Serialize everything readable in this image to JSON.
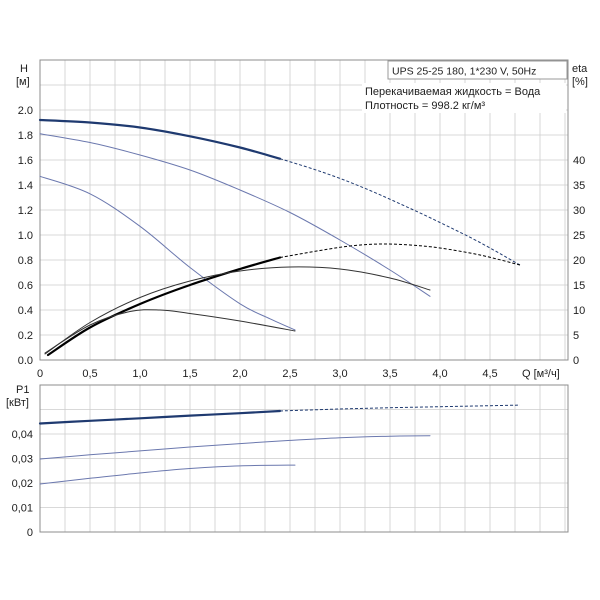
{
  "chart_data": [
    {
      "type": "line",
      "xlabel": "Q [м³/ч]",
      "ylabel": "H",
      "yunit": "[м]",
      "y2label": "eta",
      "y2unit": "[%]",
      "xlim": [
        0,
        5.28
      ],
      "ylim": [
        0,
        2.4
      ],
      "y2lim": [
        0,
        60
      ],
      "grid": true,
      "x_ticks": [
        {
          "value": 0,
          "label": "0"
        },
        {
          "value": 0.5,
          "label": "0,5"
        },
        {
          "value": 1.0,
          "label": "1,0"
        },
        {
          "value": 1.5,
          "label": "1,5"
        },
        {
          "value": 2.0,
          "label": "2,0"
        },
        {
          "value": 2.5,
          "label": "2,5"
        },
        {
          "value": 3.0,
          "label": "3,0"
        },
        {
          "value": 3.5,
          "label": "3,5"
        },
        {
          "value": 4.0,
          "label": "4,0"
        },
        {
          "value": 4.5,
          "label": "4,5"
        }
      ],
      "y_ticks": [
        {
          "value": 0.0,
          "label": "0.0"
        },
        {
          "value": 0.2,
          "label": "0.2"
        },
        {
          "value": 0.4,
          "label": "0.4"
        },
        {
          "value": 0.6,
          "label": "0.6"
        },
        {
          "value": 0.8,
          "label": "0.8"
        },
        {
          "value": 1.0,
          "label": "1.0"
        },
        {
          "value": 1.2,
          "label": "1.2"
        },
        {
          "value": 1.4,
          "label": "1.4"
        },
        {
          "value": 1.6,
          "label": "1.6"
        },
        {
          "value": 1.8,
          "label": "1.8"
        },
        {
          "value": 2.0,
          "label": "2.0"
        }
      ],
      "y2_ticks": [
        {
          "value": 0,
          "label": "0"
        },
        {
          "value": 5,
          "label": "5"
        },
        {
          "value": 10,
          "label": "10"
        },
        {
          "value": 15,
          "label": "15"
        },
        {
          "value": 20,
          "label": "20"
        },
        {
          "value": 25,
          "label": "25"
        },
        {
          "value": 30,
          "label": "30"
        },
        {
          "value": 35,
          "label": "35"
        },
        {
          "value": 40,
          "label": "40"
        }
      ],
      "annotations": {
        "model": "UPS 25-25 180, 1*230 V, 50Hz",
        "liquid": "Перекачиваемая жидкость = Вода",
        "density": "Плотность = 998.2 кг/м³"
      },
      "series": [
        {
          "color": "#1f3a70",
          "dashed_after": 2.4,
          "points": [
            [
              0,
              1.92
            ],
            [
              0.5,
              1.9
            ],
            [
              1.0,
              1.86
            ],
            [
              1.5,
              1.79
            ],
            [
              2.0,
              1.7
            ],
            [
              2.4,
              1.61
            ],
            [
              2.8,
              1.51
            ],
            [
              3.2,
              1.39
            ],
            [
              3.6,
              1.25
            ],
            [
              4.0,
              1.1
            ],
            [
              4.4,
              0.94
            ],
            [
              4.8,
              0.76
            ]
          ]
        },
        {
          "color": "#6b78ae",
          "points": [
            [
              0,
              1.81
            ],
            [
              0.5,
              1.74
            ],
            [
              1.0,
              1.64
            ],
            [
              1.5,
              1.52
            ],
            [
              2.0,
              1.36
            ],
            [
              2.5,
              1.18
            ],
            [
              3.0,
              0.96
            ],
            [
              3.5,
              0.72
            ],
            [
              3.9,
              0.51
            ]
          ]
        },
        {
          "color": "#6b78ae",
          "points": [
            [
              0,
              1.47
            ],
            [
              0.5,
              1.33
            ],
            [
              1.0,
              1.07
            ],
            [
              1.5,
              0.74
            ],
            [
              2.0,
              0.45
            ],
            [
              2.3,
              0.33
            ],
            [
              2.55,
              0.24
            ]
          ]
        }
      ],
      "y2_series": [
        {
          "color": "#000000",
          "dashed_after": 2.4,
          "points": [
            [
              0.08,
              1.0
            ],
            [
              0.5,
              6.5
            ],
            [
              1.0,
              11.2
            ],
            [
              1.5,
              15.0
            ],
            [
              2.0,
              18.2
            ],
            [
              2.4,
              20.5
            ],
            [
              2.8,
              21.9
            ],
            [
              3.1,
              22.8
            ],
            [
              3.4,
              23.2
            ],
            [
              3.7,
              23.0
            ],
            [
              4.0,
              22.4
            ],
            [
              4.4,
              21.0
            ],
            [
              4.8,
              19.0
            ]
          ]
        },
        {
          "color": "#333333",
          "points": [
            [
              0.05,
              1.2
            ],
            [
              0.5,
              7.5
            ],
            [
              1.0,
              12.5
            ],
            [
              1.5,
              15.8
            ],
            [
              2.0,
              17.8
            ],
            [
              2.5,
              18.6
            ],
            [
              3.0,
              18.2
            ],
            [
              3.5,
              16.4
            ],
            [
              3.9,
              14.0
            ]
          ]
        },
        {
          "color": "#333333",
          "points": [
            [
              0.05,
              1.4
            ],
            [
              0.5,
              7.0
            ],
            [
              0.9,
              9.7
            ],
            [
              1.2,
              10.0
            ],
            [
              1.5,
              9.3
            ],
            [
              2.0,
              7.8
            ],
            [
              2.55,
              5.8
            ]
          ]
        }
      ]
    },
    {
      "type": "line",
      "ylabel": "P1",
      "yunit": "[кВт]",
      "xlim": [
        0,
        5.28
      ],
      "ylim": [
        0,
        0.06
      ],
      "grid": true,
      "y_ticks": [
        {
          "value": 0,
          "label": "0"
        },
        {
          "value": 0.01,
          "label": "0,01"
        },
        {
          "value": 0.02,
          "label": "0,02"
        },
        {
          "value": 0.03,
          "label": "0,03"
        },
        {
          "value": 0.04,
          "label": "0,04"
        }
      ],
      "series": [
        {
          "color": "#1f3a70",
          "dashed_after": 2.4,
          "points": [
            [
              0,
              0.0443
            ],
            [
              0.5,
              0.0454
            ],
            [
              1.0,
              0.0464
            ],
            [
              1.5,
              0.0475
            ],
            [
              2.0,
              0.0485
            ],
            [
              2.4,
              0.0494
            ],
            [
              3.0,
              0.0502
            ],
            [
              3.6,
              0.0508
            ],
            [
              4.2,
              0.0513
            ],
            [
              4.8,
              0.0518
            ]
          ]
        },
        {
          "color": "#6b78ae",
          "points": [
            [
              0,
              0.0298
            ],
            [
              0.5,
              0.0315
            ],
            [
              1.0,
              0.0331
            ],
            [
              1.5,
              0.0347
            ],
            [
              2.0,
              0.0361
            ],
            [
              2.5,
              0.0374
            ],
            [
              3.0,
              0.0385
            ],
            [
              3.5,
              0.0391
            ],
            [
              3.9,
              0.0393
            ]
          ]
        },
        {
          "color": "#6b78ae",
          "points": [
            [
              0,
              0.0196
            ],
            [
              0.5,
              0.0219
            ],
            [
              1.0,
              0.0241
            ],
            [
              1.5,
              0.0259
            ],
            [
              2.0,
              0.027
            ],
            [
              2.55,
              0.0273
            ]
          ]
        }
      ]
    }
  ]
}
